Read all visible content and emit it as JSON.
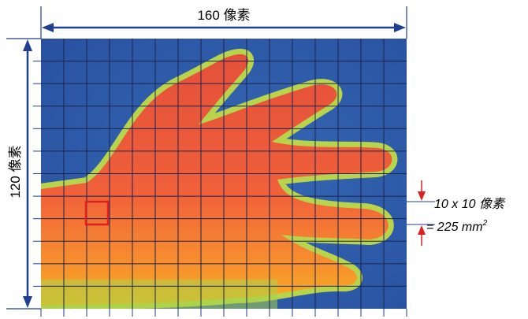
{
  "diagram": {
    "width_label": "160 像素",
    "height_label": "120 像素",
    "cell_label": "10 x 10 像素",
    "area_label": "= 225 mm",
    "area_exponent": "2",
    "grid": {
      "columns": 16,
      "rows": 12
    },
    "colors": {
      "dimension_arrow": "#1f3f8f",
      "marker": "#e02020",
      "background_cold": "#2e58a8",
      "hand_warm": "#ee5a36"
    }
  }
}
